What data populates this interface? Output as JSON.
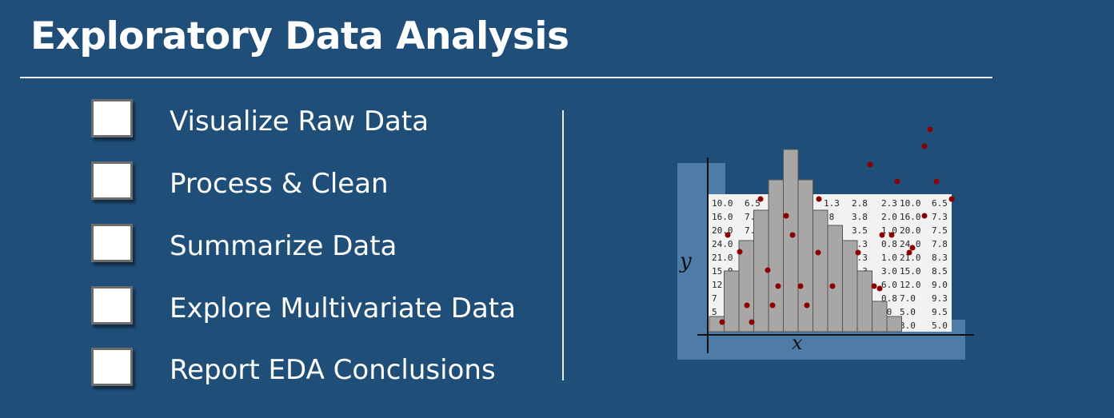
{
  "title": "Exploratory Data Analysis",
  "checklist": [
    {
      "label": "Visualize Raw Data",
      "checked": false
    },
    {
      "label": "Process & Clean",
      "checked": false
    },
    {
      "label": "Summarize Data",
      "checked": false
    },
    {
      "label": "Explore Multivariate Data",
      "checked": false
    },
    {
      "label": "Report EDA Conclusions",
      "checked": false
    }
  ],
  "figure": {
    "x_axis_label": "x",
    "y_axis_label": "y",
    "histogram_bars": [
      1,
      4,
      6,
      8,
      10,
      12,
      10,
      8,
      7,
      6,
      4,
      2,
      1
    ],
    "table_rows": [
      [
        "10.0",
        "6.5",
        "",
        "1.3",
        "2.8",
        "2.3",
        "10.0",
        "6.5"
      ],
      [
        "16.0",
        "7.",
        "",
        ".8",
        "3.8",
        "2.0",
        "16.0",
        "7.3"
      ],
      [
        "20.0",
        "7.",
        "",
        ".5",
        "3.5",
        "1.0",
        "20.0",
        "7.5"
      ],
      [
        "24.0",
        "7.",
        "",
        "",
        "3.3",
        "0.8",
        "24.0",
        "7.8"
      ],
      [
        "21.0",
        "",
        "",
        "",
        "4.3",
        "1.0",
        "21.0",
        "8.3"
      ],
      [
        "15.0",
        "",
        "",
        "",
        "1.3",
        "3.0",
        "15.0",
        "8.5"
      ],
      [
        "12.0",
        "",
        "",
        "",
        ".8",
        "6.0",
        "12.0",
        "9.0"
      ],
      [
        "7",
        "",
        "",
        "",
        "",
        "0.8",
        "7.0",
        "9.3"
      ],
      [
        "5",
        "",
        "",
        "",
        "",
        ".0",
        "5.0",
        "9.5"
      ],
      [
        "",
        "",
        "",
        "",
        "",
        "5",
        "3.0",
        "5.0"
      ]
    ],
    "colors": {
      "bar": "#a9a6a6",
      "dot": "#8b0000",
      "shadow": "#4f7ba7",
      "table_bg": "#f2f2f2"
    }
  }
}
